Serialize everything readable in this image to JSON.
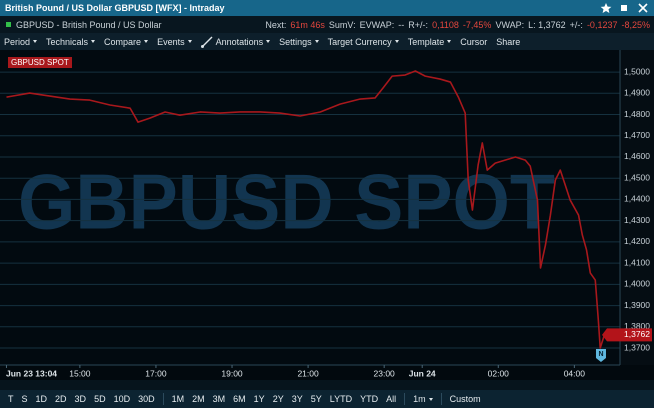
{
  "window": {
    "title": "British Pound / US Dollar GBPUSD [WFX] - Intraday"
  },
  "info_bar": {
    "instrument": "GBPUSD - British Pound / US Dollar",
    "stats": [
      {
        "text": "Next:"
      },
      {
        "text": "61m 46s",
        "red": true
      },
      {
        "text": "SumV:"
      },
      {
        "text": "EVWAP:"
      },
      {
        "text": "--"
      },
      {
        "text": "R+/-:"
      },
      {
        "text": "0,1108",
        "red": true
      },
      {
        "text": "-7,45%",
        "red": true
      },
      {
        "text": "VWAP:"
      },
      {
        "text": "L: 1,3762"
      },
      {
        "text": "+/-:"
      },
      {
        "text": "-0,1237",
        "red": true
      },
      {
        "text": "-8,25%",
        "red": true
      }
    ]
  },
  "menu": [
    {
      "text": "Period",
      "dropdown": true
    },
    {
      "text": "Technicals",
      "dropdown": true
    },
    {
      "text": "Compare",
      "dropdown": true
    },
    {
      "text": "Events",
      "dropdown": true
    },
    {
      "text": "Annotations",
      "dropdown": true,
      "icon": true
    },
    {
      "text": "Settings",
      "dropdown": true
    },
    {
      "text": "Target Currency",
      "dropdown": true
    },
    {
      "text": "Template",
      "dropdown": true
    },
    {
      "text": "Cursor"
    },
    {
      "text": "Share"
    }
  ],
  "chart_data": {
    "type": "line",
    "watermark": "GBPUSD SPOT",
    "x": [
      13.07,
      13.68,
      14.21,
      14.74,
      15.26,
      15.79,
      16.32,
      16.53,
      16.84,
      17.24,
      17.63,
      18.16,
      18.68,
      19.21,
      19.74,
      20.26,
      20.79,
      21.32,
      21.84,
      22.37,
      22.76,
      22.97,
      23.21,
      23.55,
      23.82,
      24.08,
      24.47,
      24.74,
      24.95,
      25.13,
      25.21,
      25.32,
      25.47,
      25.58,
      25.71,
      25.92,
      26.18,
      26.45,
      26.71,
      26.84,
      27.03,
      27.11,
      27.24,
      27.37,
      27.5,
      27.63,
      27.76,
      27.89,
      28.11,
      28.21,
      28.32,
      28.42,
      28.55,
      28.63,
      28.68,
      28.79
    ],
    "series": [
      {
        "name": "GBPUSD SPOT",
        "color": "#a8181c",
        "values": [
          1.4882,
          1.4901,
          1.4887,
          1.4873,
          1.4868,
          1.4845,
          1.483,
          1.4764,
          1.4783,
          1.4812,
          1.4797,
          1.4812,
          1.4807,
          1.4812,
          1.4812,
          1.4807,
          1.4793,
          1.4812,
          1.4849,
          1.4873,
          1.4878,
          1.4925,
          1.4981,
          1.4986,
          1.5005,
          1.4981,
          1.4967,
          1.4953,
          1.4882,
          1.4807,
          1.4491,
          1.435,
          1.4562,
          1.4666,
          1.4538,
          1.4571,
          1.4585,
          1.46,
          1.4585,
          1.4557,
          1.4397,
          1.4077,
          1.4185,
          1.4326,
          1.4491,
          1.4538,
          1.4468,
          1.4397,
          1.4326,
          1.4232,
          1.4162,
          1.4053,
          1.402,
          1.3832,
          1.37,
          1.3762
        ]
      }
    ],
    "xlim": [
      12.9,
      29.2
    ],
    "ylim": [
      1.362,
      1.5104
    ],
    "xticks": [
      {
        "value": 13.07,
        "label": "Jun 23 13:04"
      },
      {
        "value": 15,
        "label": "15:00"
      },
      {
        "value": 17,
        "label": "17:00"
      },
      {
        "value": 19,
        "label": "19:00"
      },
      {
        "value": 21,
        "label": "21:00"
      },
      {
        "value": 23,
        "label": "23:00"
      },
      {
        "value": 24,
        "label": "Jun 24"
      },
      {
        "value": 26,
        "label": "02:00"
      },
      {
        "value": 28,
        "label": "04:00"
      }
    ],
    "yticks": [
      {
        "value": 1.5,
        "label": "1,5000"
      },
      {
        "value": 1.49,
        "label": "1,4900"
      },
      {
        "value": 1.48,
        "label": "1,4800"
      },
      {
        "value": 1.47,
        "label": "1,4700"
      },
      {
        "value": 1.46,
        "label": "1,4600"
      },
      {
        "value": 1.45,
        "label": "1,4500"
      },
      {
        "value": 1.44,
        "label": "1,4400"
      },
      {
        "value": 1.43,
        "label": "1,4300"
      },
      {
        "value": 1.42,
        "label": "1,4200"
      },
      {
        "value": 1.41,
        "label": "1,4100"
      },
      {
        "value": 1.4,
        "label": "1,4000"
      },
      {
        "value": 1.39,
        "label": "1,3900"
      },
      {
        "value": 1.38,
        "label": "1,3800"
      },
      {
        "value": 1.37,
        "label": "1,3700"
      }
    ],
    "grid": true,
    "last_price": {
      "value": 1.3762,
      "label": "1,3762"
    },
    "events": [
      {
        "x": 28.7,
        "label": "N"
      }
    ]
  },
  "timeframes": [
    [
      "T",
      "S",
      "1D",
      "2D",
      "3D",
      "5D",
      "10D",
      "30D"
    ],
    [
      "1M",
      "2M",
      "3M",
      "6M",
      "1Y",
      "2Y",
      "3Y",
      "5Y",
      "LYTD",
      "YTD",
      "All"
    ]
  ],
  "interval": "1m",
  "custom": "Custom"
}
